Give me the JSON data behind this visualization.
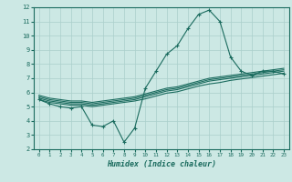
{
  "xlabel": "Humidex (Indice chaleur)",
  "bg_color": "#cce8e4",
  "grid_color": "#aacfcb",
  "line_color": "#1a6b5e",
  "xlim": [
    -0.5,
    23.5
  ],
  "ylim": [
    2,
    12
  ],
  "xticks": [
    0,
    1,
    2,
    3,
    4,
    5,
    6,
    7,
    8,
    9,
    10,
    11,
    12,
    13,
    14,
    15,
    16,
    17,
    18,
    19,
    20,
    21,
    22,
    23
  ],
  "yticks": [
    2,
    3,
    4,
    5,
    6,
    7,
    8,
    9,
    10,
    11,
    12
  ],
  "line1_x": [
    0,
    1,
    2,
    3,
    4,
    5,
    6,
    7,
    8,
    9,
    10,
    11,
    12,
    13,
    14,
    15,
    16,
    17,
    18,
    19,
    20,
    21,
    22,
    23
  ],
  "line1_y": [
    5.5,
    5.2,
    5.0,
    4.9,
    5.0,
    3.7,
    3.6,
    4.0,
    2.5,
    3.5,
    6.3,
    7.5,
    8.7,
    9.3,
    10.5,
    11.5,
    11.8,
    11.0,
    8.5,
    7.5,
    7.2,
    7.5,
    7.5,
    7.3
  ],
  "line2_x": [
    0,
    1,
    2,
    3,
    4,
    5,
    6,
    7,
    8,
    9,
    10,
    11,
    12,
    13,
    14,
    15,
    16,
    17,
    18,
    19,
    20,
    21,
    22,
    23
  ],
  "line2_y": [
    5.6,
    5.4,
    5.3,
    5.2,
    5.2,
    5.1,
    5.2,
    5.3,
    5.4,
    5.5,
    5.7,
    5.9,
    6.1,
    6.2,
    6.4,
    6.6,
    6.8,
    6.9,
    7.0,
    7.1,
    7.2,
    7.3,
    7.4,
    7.5
  ],
  "line3_x": [
    0,
    1,
    2,
    3,
    4,
    5,
    6,
    7,
    8,
    9,
    10,
    11,
    12,
    13,
    14,
    15,
    16,
    17,
    18,
    19,
    20,
    21,
    22,
    23
  ],
  "line3_y": [
    5.5,
    5.3,
    5.2,
    5.1,
    5.1,
    5.0,
    5.1,
    5.2,
    5.3,
    5.4,
    5.55,
    5.75,
    5.95,
    6.05,
    6.25,
    6.45,
    6.6,
    6.7,
    6.85,
    6.95,
    7.05,
    7.15,
    7.25,
    7.35
  ],
  "line4_x": [
    0,
    1,
    2,
    3,
    4,
    5,
    6,
    7,
    8,
    9,
    10,
    11,
    12,
    13,
    14,
    15,
    16,
    17,
    18,
    19,
    20,
    21,
    22,
    23
  ],
  "line4_y": [
    5.7,
    5.5,
    5.4,
    5.3,
    5.3,
    5.2,
    5.3,
    5.4,
    5.5,
    5.6,
    5.8,
    6.0,
    6.2,
    6.3,
    6.5,
    6.7,
    6.9,
    7.0,
    7.1,
    7.2,
    7.3,
    7.4,
    7.5,
    7.6
  ],
  "line5_x": [
    0,
    1,
    2,
    3,
    4,
    5,
    6,
    7,
    8,
    9,
    10,
    11,
    12,
    13,
    14,
    15,
    16,
    17,
    18,
    19,
    20,
    21,
    22,
    23
  ],
  "line5_y": [
    5.8,
    5.6,
    5.5,
    5.4,
    5.4,
    5.3,
    5.4,
    5.5,
    5.6,
    5.7,
    5.9,
    6.1,
    6.3,
    6.4,
    6.6,
    6.8,
    7.0,
    7.1,
    7.2,
    7.3,
    7.4,
    7.5,
    7.6,
    7.7
  ]
}
